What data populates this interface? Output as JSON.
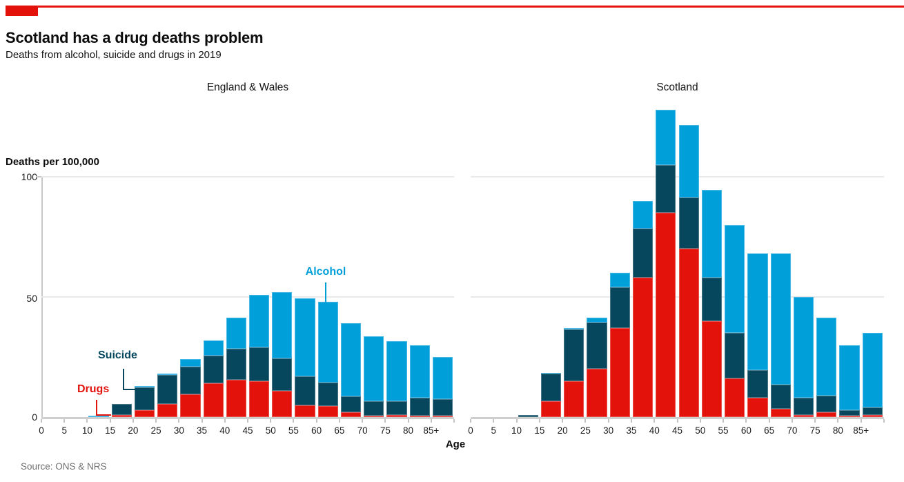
{
  "header": {
    "title": "Scotland has a drug deaths problem",
    "subtitle": "Deaths from alcohol, suicide and drugs in 2019"
  },
  "y_axis": {
    "label": "Deaths per 100,000",
    "ticks": [
      "0",
      "50",
      "100"
    ]
  },
  "x_axis": {
    "label": "Age"
  },
  "annotations": {
    "alcohol": "Alcohol",
    "suicide": "Suicide",
    "drugs": "Drugs"
  },
  "footer": {
    "source": "Source: ONS & NRS"
  },
  "colors": {
    "accent_red": "#e3120b",
    "drugs": "#e3120b",
    "suicide": "#07475d",
    "alcohol": "#009fda",
    "grid": "#e9e9e9",
    "axis": "#c9c9c9"
  },
  "chart_data": [
    {
      "type": "bar",
      "stacked": true,
      "title": "England & Wales",
      "xlabel": "Age",
      "ylabel": "Deaths per 100,000",
      "ylim": [
        0,
        130
      ],
      "y_gridlines": [
        50,
        100
      ],
      "categories": [
        "0",
        "5",
        "10",
        "15",
        "20",
        "25",
        "30",
        "35",
        "40",
        "45",
        "50",
        "55",
        "60",
        "65",
        "70",
        "75",
        "80",
        "85+"
      ],
      "series": [
        {
          "name": "Drugs",
          "color": "#e3120b",
          "values": [
            0,
            0,
            0,
            1,
            3,
            5.5,
            9.5,
            14,
            15.5,
            15,
            11,
            5,
            4.5,
            2,
            0.5,
            1,
            0.5,
            0.5
          ]
        },
        {
          "name": "Suicide",
          "color": "#07475d",
          "values": [
            0,
            0,
            0,
            4.5,
            9.5,
            12,
            11.5,
            11.5,
            13,
            14,
            13.5,
            12,
            10,
            6.5,
            6,
            5.5,
            7.5,
            7
          ]
        },
        {
          "name": "Alcohol",
          "color": "#009fda",
          "values": [
            0,
            0,
            0.5,
            0,
            0.5,
            0.5,
            3,
            6.5,
            13,
            22,
            27.5,
            32.5,
            33.5,
            30.5,
            27,
            25,
            22,
            17.5
          ]
        }
      ]
    },
    {
      "type": "bar",
      "stacked": true,
      "title": "Scotland",
      "xlabel": "Age",
      "ylabel": "Deaths per 100,000",
      "ylim": [
        0,
        130
      ],
      "y_gridlines": [
        50,
        100
      ],
      "categories": [
        "0",
        "5",
        "10",
        "15",
        "20",
        "25",
        "30",
        "35",
        "40",
        "45",
        "50",
        "55",
        "60",
        "65",
        "70",
        "75",
        "80",
        "85+"
      ],
      "series": [
        {
          "name": "Drugs",
          "color": "#e3120b",
          "values": [
            0,
            0,
            0,
            6.5,
            15,
            20,
            37,
            58,
            85,
            70,
            40,
            16,
            8,
            3.5,
            1,
            2,
            0.5,
            1
          ]
        },
        {
          "name": "Suicide",
          "color": "#07475d",
          "values": [
            0,
            0,
            1,
            11.5,
            21.5,
            19.5,
            17,
            20.5,
            20,
            21.5,
            18,
            19,
            11.5,
            10,
            7,
            7,
            2.5,
            3
          ]
        },
        {
          "name": "Alcohol",
          "color": "#009fda",
          "values": [
            0,
            0,
            0,
            0.5,
            0.5,
            2,
            6,
            11.5,
            23,
            30,
            36.5,
            45,
            48.5,
            54.5,
            42,
            32.5,
            27,
            31
          ]
        }
      ]
    }
  ]
}
